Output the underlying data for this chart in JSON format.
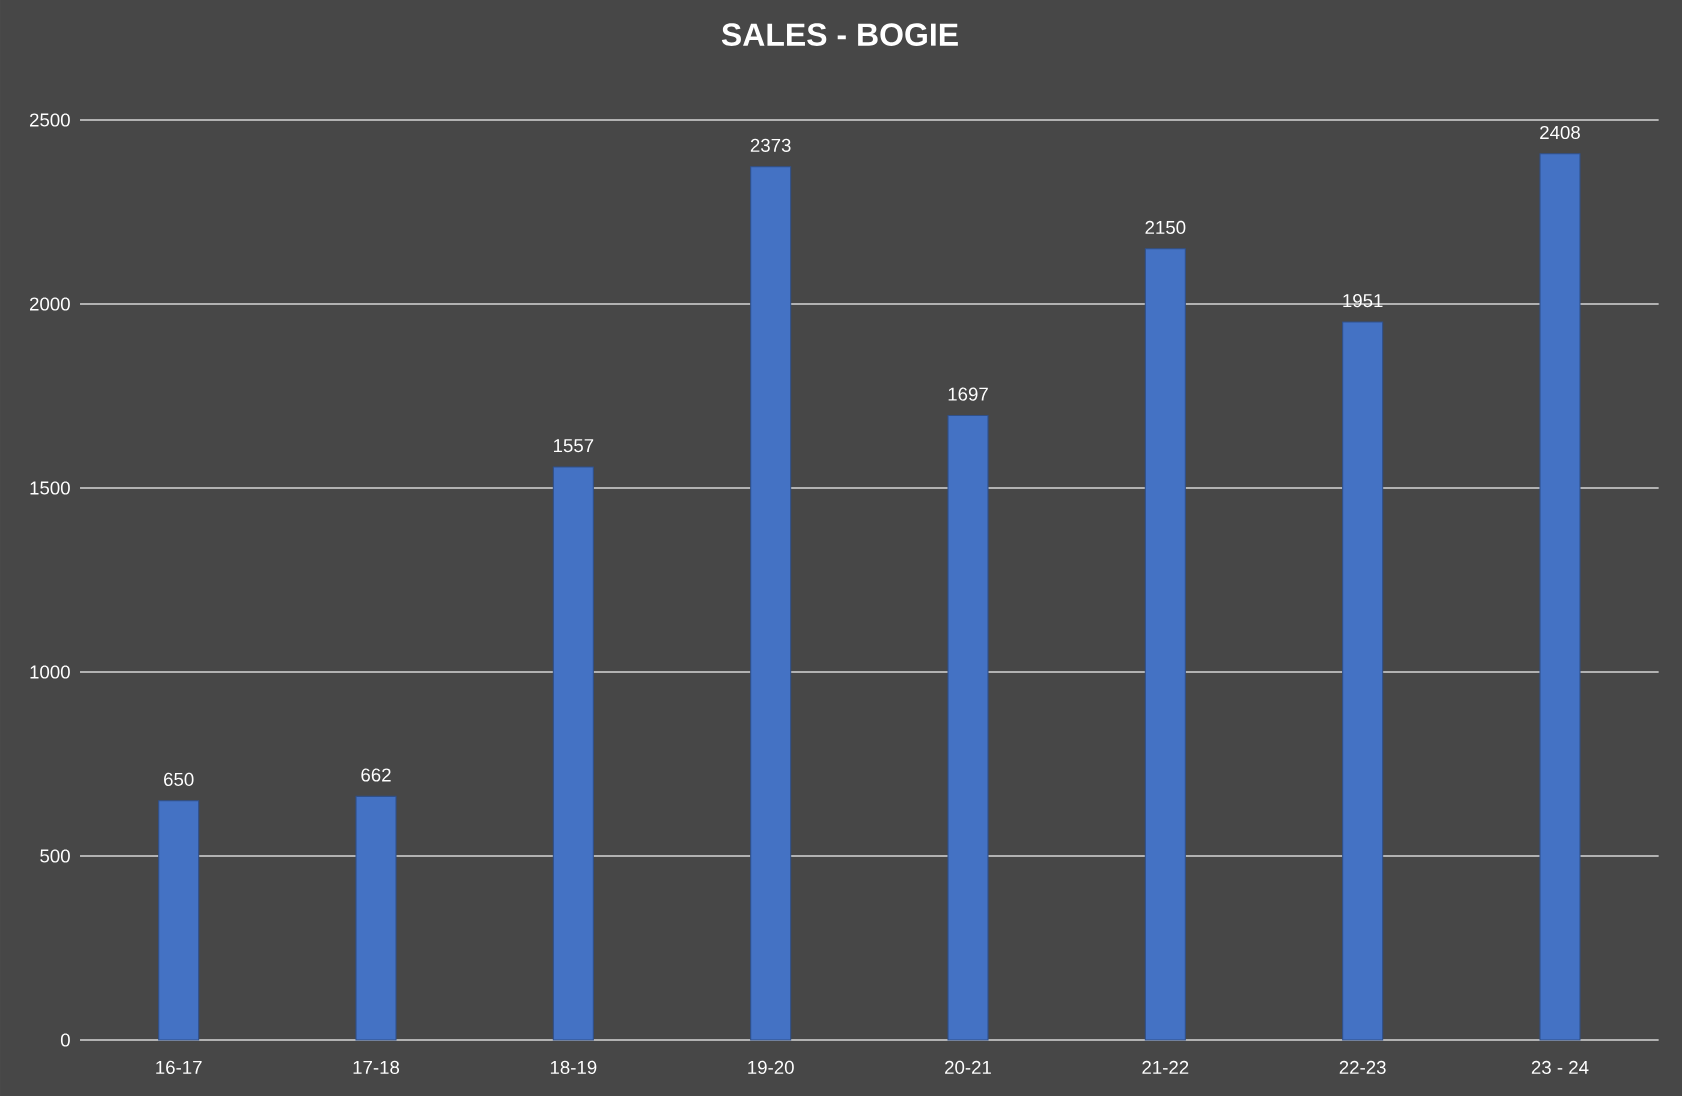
{
  "chart_data": {
    "type": "bar",
    "title": "SALES - BOGIE",
    "categories": [
      "16-17",
      "17-18",
      "18-19",
      "19-20",
      "20-21",
      "21-22",
      "22-23",
      "23 - 24"
    ],
    "values": [
      650,
      662,
      1557,
      2373,
      1697,
      2150,
      1951,
      2408
    ],
    "color": "#4472c4",
    "ylim": [
      0,
      2500
    ],
    "yticks": [
      0,
      500,
      1000,
      1500,
      2000,
      2500
    ],
    "grid": "y",
    "data_labels": true
  }
}
